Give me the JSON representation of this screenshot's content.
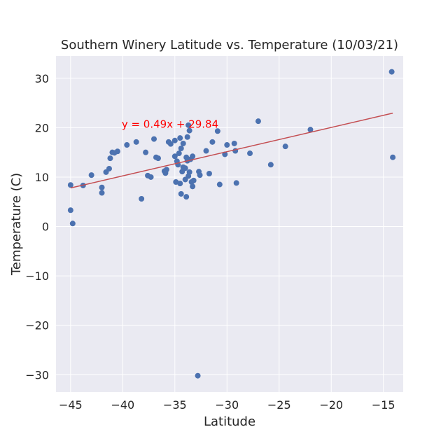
{
  "chart_data": {
    "type": "scatter",
    "title": "Southern Winery Latitude vs. Temperature (10/03/21)",
    "xlabel": "Latitude",
    "ylabel": "Temperature (C)",
    "xlim": [
      -46.4,
      -13.1
    ],
    "ylim": [
      -33.5,
      34.5
    ],
    "xticks": [
      -45,
      -40,
      -35,
      -30,
      -25,
      -20,
      -15
    ],
    "xtick_labels": [
      "−45",
      "−40",
      "−35",
      "−30",
      "−25",
      "−20",
      "−15"
    ],
    "yticks": [
      -30,
      -20,
      -10,
      0,
      10,
      20,
      30
    ],
    "ytick_labels": [
      "−30",
      "−20",
      "−10",
      "0",
      "10",
      "20",
      "30"
    ],
    "grid": true,
    "style": {
      "background": "#eaeaf2",
      "grid_color": "#ffffff",
      "marker_color": "#4c72b0",
      "line_color": "#c44e52",
      "annotation_color": "#ff0000"
    },
    "series": [
      {
        "values_xy": [
          [
            -45.0,
            3.3
          ],
          [
            -45.0,
            8.4
          ],
          [
            -44.8,
            0.6
          ],
          [
            -43.8,
            8.3
          ],
          [
            -43.0,
            10.4
          ],
          [
            -42.0,
            6.8
          ],
          [
            -42.0,
            7.9
          ],
          [
            -41.6,
            11.0
          ],
          [
            -41.3,
            11.7
          ],
          [
            -41.2,
            13.8
          ],
          [
            -41.0,
            15.0
          ],
          [
            -40.8,
            14.9
          ],
          [
            -40.5,
            15.2
          ],
          [
            -39.6,
            16.5
          ],
          [
            -38.7,
            17.1
          ],
          [
            -38.2,
            5.6
          ],
          [
            -37.8,
            15.0
          ],
          [
            -37.6,
            10.3
          ],
          [
            -37.3,
            10.0
          ],
          [
            -37.0,
            17.7
          ],
          [
            -36.8,
            14.0
          ],
          [
            -36.6,
            13.8
          ],
          [
            -36.0,
            11.2
          ],
          [
            -35.9,
            10.8
          ],
          [
            -35.8,
            11.5
          ],
          [
            -35.6,
            17.1
          ],
          [
            -35.4,
            16.7
          ],
          [
            -35.0,
            17.4
          ],
          [
            -35.0,
            14.2
          ],
          [
            -34.9,
            9.0
          ],
          [
            -34.8,
            13.2
          ],
          [
            -34.7,
            12.5
          ],
          [
            -34.6,
            14.8
          ],
          [
            -34.5,
            17.9
          ],
          [
            -34.5,
            8.7
          ],
          [
            -34.4,
            6.6
          ],
          [
            -34.4,
            15.8
          ],
          [
            -34.3,
            11.1
          ],
          [
            -34.2,
            12.0
          ],
          [
            -34.2,
            16.8
          ],
          [
            -34.0,
            11.8
          ],
          [
            -34.0,
            9.5
          ],
          [
            -33.9,
            6.0
          ],
          [
            -33.9,
            14.0
          ],
          [
            -33.8,
            18.1
          ],
          [
            -33.8,
            13.3
          ],
          [
            -33.7,
            20.5
          ],
          [
            -33.7,
            10.2
          ],
          [
            -33.6,
            19.4
          ],
          [
            -33.6,
            11.0
          ],
          [
            -33.5,
            13.6
          ],
          [
            -33.4,
            9.0
          ],
          [
            -33.3,
            8.1
          ],
          [
            -33.3,
            14.2
          ],
          [
            -33.2,
            9.3
          ],
          [
            -32.8,
            -30.2
          ],
          [
            -32.7,
            11.1
          ],
          [
            -32.6,
            10.4
          ],
          [
            -32.0,
            15.3
          ],
          [
            -31.7,
            10.7
          ],
          [
            -31.4,
            17.1
          ],
          [
            -30.9,
            19.3
          ],
          [
            -30.7,
            8.5
          ],
          [
            -30.2,
            14.6
          ],
          [
            -30.0,
            16.5
          ],
          [
            -29.3,
            16.8
          ],
          [
            -29.2,
            15.3
          ],
          [
            -29.1,
            8.8
          ],
          [
            -27.8,
            14.8
          ],
          [
            -27.0,
            21.3
          ],
          [
            -25.8,
            12.5
          ],
          [
            -24.4,
            16.2
          ],
          [
            -22.0,
            19.6
          ],
          [
            -14.2,
            31.3
          ],
          [
            -14.1,
            14.0
          ]
        ]
      }
    ],
    "regression": {
      "slope": 0.49,
      "intercept": 29.84,
      "x_start": -45.0,
      "x_end": -14.1
    },
    "annotation": {
      "text": "y = 0.49x + 29.84",
      "x": -40.1,
      "y": 20.0
    }
  }
}
